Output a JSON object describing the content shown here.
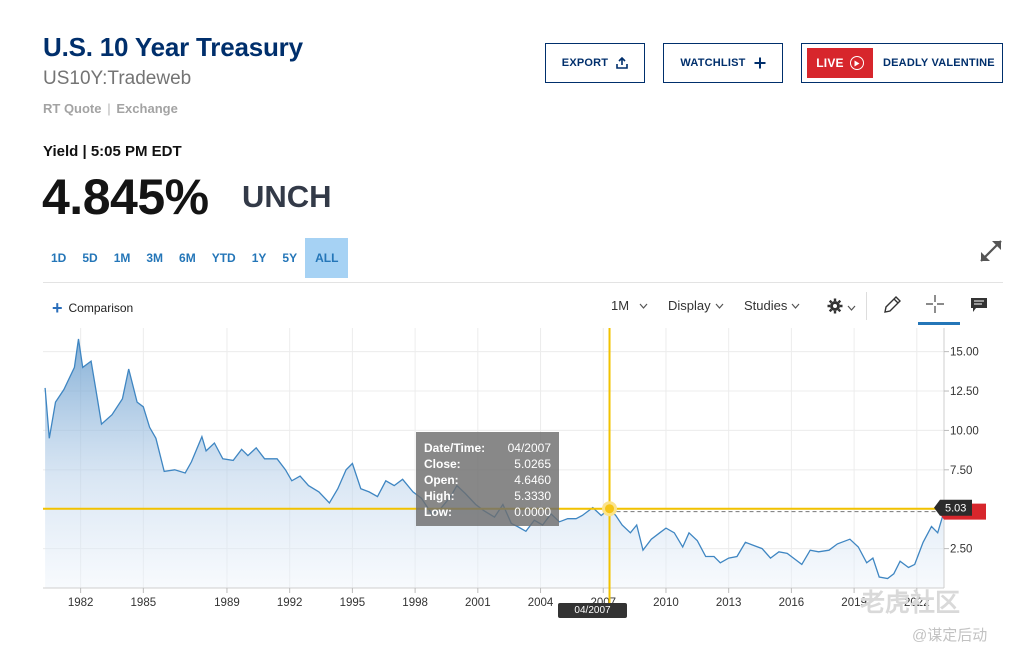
{
  "header": {
    "title": "U.S. 10 Year Treasury",
    "symbol": "US10Y:Tradeweb",
    "quote_type": "RT Quote",
    "quote_sep": "|",
    "exchange": "Exchange",
    "yield_line": "Yield | 5:05 PM EDT",
    "price": "4.845%",
    "change": "UNCH"
  },
  "buttons": {
    "export": "EXPORT",
    "watchlist": "WATCHLIST",
    "live": "LIVE",
    "live_show": "DEADLY VALENTINE"
  },
  "range_tabs": [
    {
      "label": "1D"
    },
    {
      "label": "5D"
    },
    {
      "label": "1M"
    },
    {
      "label": "3M"
    },
    {
      "label": "6M"
    },
    {
      "label": "YTD"
    },
    {
      "label": "1Y"
    },
    {
      "label": "5Y"
    },
    {
      "label": "ALL",
      "active": true
    }
  ],
  "toolbar": {
    "comparison": "Comparison",
    "interval": "1M",
    "display": "Display",
    "studies": "Studies"
  },
  "tooltip": {
    "date_label": "Date/Time:",
    "date_value": "04/2007",
    "close_label": "Close:",
    "close_value": "5.0265",
    "open_label": "Open:",
    "open_value": "4.6460",
    "high_label": "High:",
    "high_value": "5.3330",
    "low_label": "Low:",
    "low_value": "0.0000"
  },
  "crosshair": {
    "x_flag": "04/2007",
    "y_flag": "5.03"
  },
  "watermark": {
    "brand": "老虎社区",
    "handle": "@谋定后动"
  },
  "colors": {
    "line": "#3f86c2",
    "crosshair": "#f2c200",
    "price_flag": "#d7262c",
    "accent": "#002F6C"
  },
  "chart_data": {
    "type": "area",
    "x_ticks": [
      "1982",
      "1985",
      "1989",
      "1992",
      "1995",
      "1998",
      "2001",
      "2004",
      "2007",
      "2010",
      "2013",
      "2016",
      "2019",
      "2022"
    ],
    "y_ticks": [
      "15.00",
      "12.50",
      "10.00",
      "7.50",
      "5.00",
      "2.50"
    ],
    "ylim": [
      0,
      16.5
    ],
    "xlim": [
      1980.2,
      2023.3
    ],
    "series": [
      {
        "values": [
          [
            1980.3,
            12.7
          ],
          [
            1980.5,
            9.5
          ],
          [
            1980.8,
            11.8
          ],
          [
            1981.2,
            12.6
          ],
          [
            1981.7,
            14.0
          ],
          [
            1981.9,
            15.8
          ],
          [
            1982.1,
            14.0
          ],
          [
            1982.5,
            14.4
          ],
          [
            1982.8,
            12.0
          ],
          [
            1983.0,
            10.4
          ],
          [
            1983.5,
            11.0
          ],
          [
            1984.0,
            12.0
          ],
          [
            1984.3,
            13.9
          ],
          [
            1984.7,
            11.8
          ],
          [
            1985.0,
            11.5
          ],
          [
            1985.3,
            10.2
          ],
          [
            1985.6,
            9.5
          ],
          [
            1986.0,
            7.4
          ],
          [
            1986.5,
            7.5
          ],
          [
            1987.0,
            7.3
          ],
          [
            1987.3,
            8.0
          ],
          [
            1987.8,
            9.6
          ],
          [
            1988.0,
            8.7
          ],
          [
            1988.4,
            9.2
          ],
          [
            1988.8,
            8.2
          ],
          [
            1989.3,
            8.1
          ],
          [
            1989.7,
            8.8
          ],
          [
            1990.0,
            8.4
          ],
          [
            1990.4,
            8.9
          ],
          [
            1990.8,
            8.2
          ],
          [
            1991.4,
            8.2
          ],
          [
            1991.8,
            7.5
          ],
          [
            1992.1,
            6.8
          ],
          [
            1992.5,
            7.1
          ],
          [
            1992.9,
            6.5
          ],
          [
            1993.4,
            6.1
          ],
          [
            1993.9,
            5.4
          ],
          [
            1994.3,
            6.3
          ],
          [
            1994.7,
            7.5
          ],
          [
            1995.0,
            7.9
          ],
          [
            1995.4,
            6.3
          ],
          [
            1995.8,
            6.1
          ],
          [
            1996.2,
            5.8
          ],
          [
            1996.6,
            6.8
          ],
          [
            1997.0,
            6.5
          ],
          [
            1997.4,
            6.9
          ],
          [
            1997.9,
            6.1
          ],
          [
            1998.3,
            5.7
          ],
          [
            1998.8,
            4.7
          ],
          [
            1999.2,
            5.0
          ],
          [
            1999.7,
            5.8
          ],
          [
            2000.0,
            6.5
          ],
          [
            2000.4,
            6.0
          ],
          [
            2000.9,
            5.3
          ],
          [
            2001.3,
            4.9
          ],
          [
            2001.8,
            4.5
          ],
          [
            2002.2,
            5.3
          ],
          [
            2002.6,
            4.1
          ],
          [
            2002.9,
            3.9
          ],
          [
            2003.3,
            3.6
          ],
          [
            2003.7,
            4.3
          ],
          [
            2004.1,
            4.0
          ],
          [
            2004.5,
            4.7
          ],
          [
            2004.9,
            4.2
          ],
          [
            2005.3,
            4.4
          ],
          [
            2005.7,
            4.4
          ],
          [
            2006.0,
            4.6
          ],
          [
            2006.5,
            5.1
          ],
          [
            2006.9,
            4.6
          ],
          [
            2007.3,
            5.03
          ],
          [
            2007.6,
            4.6
          ],
          [
            2007.9,
            4.0
          ],
          [
            2008.3,
            3.5
          ],
          [
            2008.6,
            4.0
          ],
          [
            2008.9,
            2.4
          ],
          [
            2009.3,
            3.1
          ],
          [
            2009.7,
            3.5
          ],
          [
            2010.0,
            3.8
          ],
          [
            2010.4,
            3.5
          ],
          [
            2010.8,
            2.6
          ],
          [
            2011.1,
            3.5
          ],
          [
            2011.5,
            3.0
          ],
          [
            2011.9,
            2.0
          ],
          [
            2012.3,
            2.0
          ],
          [
            2012.6,
            1.6
          ],
          [
            2013.0,
            1.9
          ],
          [
            2013.4,
            2.0
          ],
          [
            2013.8,
            2.9
          ],
          [
            2014.2,
            2.7
          ],
          [
            2014.6,
            2.5
          ],
          [
            2015.0,
            1.9
          ],
          [
            2015.4,
            2.3
          ],
          [
            2015.8,
            2.2
          ],
          [
            2016.1,
            1.9
          ],
          [
            2016.5,
            1.5
          ],
          [
            2016.9,
            2.4
          ],
          [
            2017.3,
            2.3
          ],
          [
            2017.8,
            2.4
          ],
          [
            2018.2,
            2.8
          ],
          [
            2018.8,
            3.1
          ],
          [
            2019.2,
            2.6
          ],
          [
            2019.6,
            1.6
          ],
          [
            2019.9,
            1.9
          ],
          [
            2020.2,
            0.7
          ],
          [
            2020.6,
            0.6
          ],
          [
            2020.9,
            0.9
          ],
          [
            2021.2,
            1.7
          ],
          [
            2021.6,
            1.3
          ],
          [
            2021.9,
            1.5
          ],
          [
            2022.3,
            2.9
          ],
          [
            2022.7,
            3.9
          ],
          [
            2023.0,
            3.5
          ],
          [
            2023.3,
            4.85
          ]
        ]
      }
    ],
    "crosshair_value": 5.03,
    "crosshair_date": 2007.3,
    "last_value": 4.845
  }
}
